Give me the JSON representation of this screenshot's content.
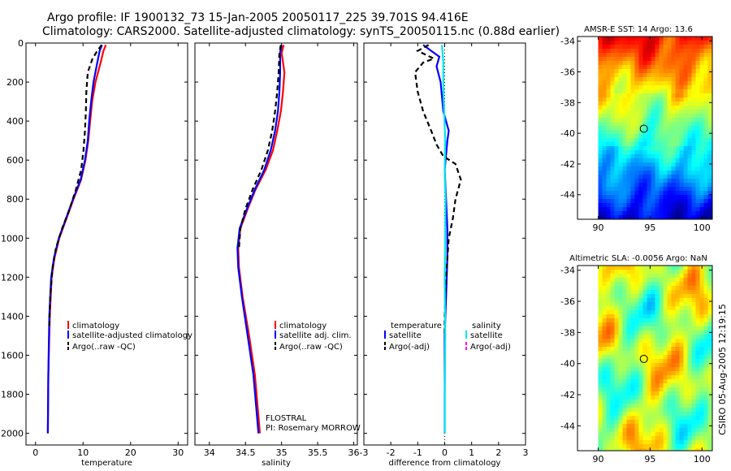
{
  "page": {
    "title_line1": "Argo profile: IF 1900132_73 15-Jan-2005 20050117_225 39.701S 94.416E",
    "title_line2": "Climatology: CARS2000. Satellite-adjusted climatology: synTS_20050115.nc (0.88d earlier)",
    "credit": "CSIRO 05-Aug-2005 12:19:15"
  },
  "colors": {
    "climatology": "#ff0000",
    "satellite": "#0000ff",
    "argo": "#000000",
    "salinity_satellite": "#00e5ee",
    "salinity_argo": "#ff00ff"
  },
  "chart_data": [
    {
      "id": "temperature",
      "type": "line",
      "xlabel": "temperature",
      "ylabel": "",
      "xlim": [
        -2,
        32
      ],
      "ylim": [
        2060,
        0
      ],
      "xticks": [
        0,
        10,
        20,
        30
      ],
      "yticks": [
        0,
        200,
        400,
        600,
        800,
        1000,
        1200,
        1400,
        1600,
        1800,
        2000
      ],
      "legend": [
        "climatology",
        "satellite-adjusted climatology",
        "Argo(..raw -QC)"
      ],
      "legend_position": "lower-right",
      "series": [
        {
          "name": "climatology",
          "color": "#ff0000",
          "dash": "",
          "x": [
            14.8,
            14.3,
            13.7,
            12.6,
            11.9,
            11.5,
            11.1,
            10.5,
            9.6,
            8.0,
            6.5,
            5.0,
            4.0,
            3.4,
            3.0,
            2.7,
            2.6
          ],
          "y": [
            10,
            40,
            100,
            200,
            300,
            400,
            500,
            600,
            700,
            800,
            900,
            1000,
            1100,
            1200,
            1400,
            1700,
            2000
          ]
        },
        {
          "name": "satellite-adjusted climatology",
          "color": "#0000ff",
          "dash": "",
          "x": [
            14.0,
            13.5,
            13.0,
            12.2,
            11.7,
            11.3,
            11.0,
            10.4,
            9.5,
            7.9,
            6.4,
            4.9,
            3.9,
            3.3,
            2.9,
            2.7,
            2.6
          ],
          "y": [
            10,
            40,
            100,
            200,
            300,
            400,
            500,
            600,
            700,
            800,
            900,
            1000,
            1100,
            1200,
            1400,
            1700,
            2000
          ]
        },
        {
          "name": "Argo(..raw -QC)",
          "color": "#000000",
          "dash": "6,4",
          "x": [
            13.9,
            13.0,
            12.0,
            11.0,
            10.7,
            10.6,
            10.4,
            10.1,
            9.6,
            8.5,
            7.2,
            5.6,
            4.3,
            3.6,
            3.1,
            2.9
          ],
          "y": [
            10,
            40,
            80,
            150,
            250,
            350,
            450,
            550,
            650,
            750,
            850,
            950,
            1050,
            1150,
            1300,
            1450
          ]
        }
      ]
    },
    {
      "id": "salinity",
      "type": "line",
      "xlabel": "salinity",
      "ylabel": "",
      "xlim": [
        33.8,
        36.05
      ],
      "ylim": [
        2060,
        0
      ],
      "xticks": [
        34,
        34.5,
        35,
        35.5,
        36
      ],
      "yticks": [
        0,
        200,
        400,
        600,
        800,
        1000,
        1200,
        1400,
        1600,
        1800,
        2000
      ],
      "legend": [
        "climatology",
        "satellite adj. clim.",
        "Argo(..raw -QC)"
      ],
      "legend_position": "lower-right",
      "annotation": [
        "FLOSTRAL",
        "PI: Rosemary MORROW"
      ],
      "series": [
        {
          "name": "climatology",
          "color": "#ff0000",
          "dash": "",
          "x": [
            35.03,
            35.0,
            35.04,
            35.02,
            34.99,
            34.94,
            34.88,
            34.78,
            34.64,
            34.53,
            34.43,
            34.4,
            34.41,
            34.46,
            34.55,
            34.63,
            34.7
          ],
          "y": [
            10,
            50,
            150,
            250,
            350,
            450,
            550,
            650,
            750,
            850,
            950,
            1050,
            1150,
            1300,
            1500,
            1700,
            2000
          ]
        },
        {
          "name": "satellite adj. clim.",
          "color": "#0000ff",
          "dash": "",
          "x": [
            35.0,
            34.98,
            34.98,
            34.97,
            34.95,
            34.91,
            34.85,
            34.76,
            34.63,
            34.52,
            34.42,
            34.39,
            34.4,
            34.45,
            34.53,
            34.61,
            34.68
          ],
          "y": [
            10,
            50,
            150,
            250,
            350,
            450,
            550,
            650,
            750,
            850,
            950,
            1050,
            1150,
            1300,
            1500,
            1700,
            2000
          ]
        },
        {
          "name": "Argo(..raw -QC)",
          "color": "#000000",
          "dash": "6,4",
          "x": [
            34.99,
            34.97,
            34.96,
            34.94,
            34.91,
            34.87,
            34.81,
            34.72,
            34.6,
            34.5,
            34.43,
            34.41
          ],
          "y": [
            10,
            50,
            150,
            250,
            350,
            450,
            550,
            650,
            750,
            850,
            950,
            1050
          ]
        }
      ]
    },
    {
      "id": "difference",
      "type": "line",
      "xlabel": "difference from climatology",
      "ylabel": "",
      "xlim": [
        -3,
        3
      ],
      "ylim": [
        2060,
        0
      ],
      "xticks": [
        -3,
        -2,
        -1,
        0,
        1,
        2,
        3
      ],
      "yticks": [
        0,
        200,
        400,
        600,
        800,
        1000,
        1200,
        1400,
        1600,
        1800,
        2000
      ],
      "legend_temperature": [
        "temperature",
        "satellite",
        "Argo(-adj)"
      ],
      "legend_salinity": [
        "salinity",
        "satellite",
        "Argo(-adj)"
      ],
      "legend_position": "lower",
      "series": [
        {
          "name": "temperature satellite",
          "color": "#0000ff",
          "dash": "",
          "x": [
            -0.8,
            -0.5,
            -0.2,
            -0.3,
            -0.15,
            -0.05,
            0.15,
            0.1,
            0.0,
            0.05,
            0.1,
            0.1,
            0.05,
            0.0,
            0.0,
            0.0
          ],
          "y": [
            10,
            40,
            70,
            120,
            200,
            350,
            450,
            500,
            650,
            800,
            950,
            1100,
            1300,
            1500,
            1800,
            2000
          ]
        },
        {
          "name": "temperature Argo(-adj)",
          "color": "#000000",
          "dash": "6,4",
          "x": [
            -0.6,
            -1.0,
            -0.4,
            -0.8,
            -1.1,
            -1.0,
            -0.8,
            -0.5,
            -0.3,
            -0.05,
            0.4,
            0.6,
            0.4,
            0.3,
            0.15,
            0.05,
            0.0,
            0.0
          ],
          "y": [
            10,
            40,
            80,
            100,
            150,
            250,
            350,
            450,
            520,
            580,
            620,
            700,
            800,
            900,
            1000,
            1200,
            1400,
            1500
          ]
        },
        {
          "name": "salinity satellite",
          "color": "#00e5ee",
          "dash": "",
          "x": [
            -0.1,
            -0.05,
            -0.05,
            -0.02,
            0.02,
            0.0,
            0.03,
            0.02,
            0.0,
            0.02,
            0.0,
            0.0
          ],
          "y": [
            10,
            100,
            200,
            350,
            500,
            650,
            800,
            1000,
            1200,
            1500,
            1800,
            2000
          ]
        }
      ]
    },
    {
      "id": "sst_map",
      "type": "heatmap",
      "title": "AMSR-E SST: 14 Argo: 13.6",
      "xlim": [
        88,
        101
      ],
      "ylim": [
        -45.6,
        -33.7
      ],
      "data_xlim": [
        90,
        101
      ],
      "xticks": [
        90,
        95,
        100
      ],
      "yticks": [
        -34,
        -36,
        -38,
        -40,
        -42,
        -44
      ],
      "marker": {
        "lon": 94.4,
        "lat": -39.7
      }
    },
    {
      "id": "sla_map",
      "type": "heatmap",
      "title": "Altimetric SLA: -0.0056 Argo: NaN",
      "xlim": [
        88,
        101
      ],
      "ylim": [
        -45.6,
        -33.7
      ],
      "data_xlim": [
        90,
        101
      ],
      "xticks": [
        90,
        95,
        100
      ],
      "yticks": [
        -34,
        -36,
        -38,
        -40,
        -42,
        -44
      ],
      "marker": {
        "lon": 94.4,
        "lat": -39.7
      }
    }
  ]
}
